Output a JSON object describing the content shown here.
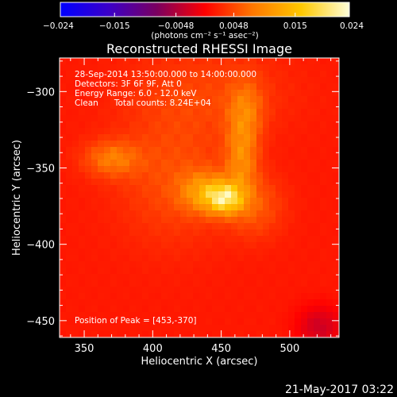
{
  "chart_data": {
    "type": "heatmap",
    "title": "Reconstructed RHESSI Image",
    "xlabel": "Heliocentric X (arcsec)",
    "ylabel": "Heliocentric Y (arcsec)",
    "xlim": [
      332,
      536
    ],
    "ylim": [
      -461,
      -278
    ],
    "xticks": [
      350,
      400,
      450,
      500
    ],
    "yticks": [
      -300,
      -350,
      -400,
      -450
    ],
    "colorbar": {
      "min": -0.024,
      "max": 0.024,
      "tick_values": [
        -0.024,
        -0.015,
        -0.0048,
        0.0048,
        0.015,
        0.024
      ],
      "tick_labels": [
        "−0.024",
        "−0.015",
        "−0.0048",
        "0.0048",
        "0.015",
        "0.024"
      ],
      "unit_label": "(photons cm⁻² s⁻¹ asec⁻²)"
    },
    "info_lines": [
      "28-Sep-2014 13:50:00.000 to 14:00:00.000",
      "Detectors: 3F 6F 9F, Att 0",
      "Energy Range: 6.0 - 12.0 keV",
      "Clean      Total counts: 8.24E+04"
    ],
    "peak_label": "Position of Peak = [453,-370]",
    "peak": [
      453,
      -370
    ],
    "sources": [
      {
        "x": 453,
        "y": -370,
        "sigma_x": 9,
        "sigma_y": 7,
        "amp": 0.0145
      },
      {
        "x": 438,
        "y": -366,
        "sigma_x": 12,
        "sigma_y": 9,
        "amp": 0.0085
      },
      {
        "x": 465,
        "y": -343,
        "sigma_x": 8,
        "sigma_y": 18,
        "amp": 0.0072
      },
      {
        "x": 370,
        "y": -344,
        "sigma_x": 14,
        "sigma_y": 8,
        "amp": 0.0062
      },
      {
        "x": 468,
        "y": -312,
        "sigma_x": 9,
        "sigma_y": 14,
        "amp": 0.005
      },
      {
        "x": 475,
        "y": -375,
        "sigma_x": 14,
        "sigma_y": 14,
        "amp": 0.004
      },
      {
        "x": 415,
        "y": -355,
        "sigma_x": 28,
        "sigma_y": 30,
        "amp": 0.0035
      },
      {
        "x": 440,
        "y": -300,
        "sigma_x": 40,
        "sigma_y": 20,
        "amp": 0.0025
      }
    ],
    "background": 0.0016,
    "negative_region": {
      "x": 522,
      "y": -454,
      "sigma_x": 12,
      "sigma_y": 10,
      "amp": -0.0045
    },
    "colors": {
      "colormap": [
        "#0000ff",
        "#3b00c8",
        "#7a0060",
        "#ff0000",
        "#ff7800",
        "#ffc800",
        "#ffffd8"
      ]
    }
  },
  "timestamp": "21-May-2017 03:22"
}
